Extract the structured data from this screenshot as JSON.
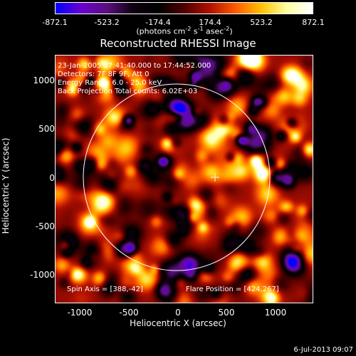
{
  "colorbar": {
    "ticks": [
      "-872.1",
      "-523.2",
      "-174.4",
      "174.4",
      "523.2",
      "872.1"
    ],
    "units_prefix": "(photons cm",
    "units_exp1": "-2",
    "units_mid": " s",
    "units_exp2": "-1",
    "units_mid2": " asec",
    "units_exp3": "-2",
    "units_suffix": ")",
    "colors": [
      "#0000ff",
      "#6a00d0",
      "#5a1080",
      "#100010",
      "#000000",
      "#500000",
      "#b01000",
      "#ff5a00",
      "#ffc000",
      "#ffffa0",
      "#ffffff"
    ]
  },
  "title": "Reconstructed RHESSI Image",
  "annotations": {
    "time": "23-Jan-2005 17:41:40.000 to 17:44:52.000",
    "detectors": "Detectors: 7F 8F 9F, Att 0",
    "energy": "Energy Range: 6.0 - 25.0 keV",
    "method": "Back Projection    Total counts: 6.02E+03",
    "spin_axis": "Spin Axis = [388,-42]",
    "flare_position": "Flare Position = [424,267]"
  },
  "axes": {
    "xlabel": "Heliocentric X (arcsec)",
    "ylabel": "Heliocentric Y (arcsec)",
    "xticks": [
      "-1000",
      "-500",
      "0",
      "500",
      "1000"
    ],
    "yticks": [
      "1000",
      "500",
      "0",
      "-500",
      "-1000"
    ]
  },
  "footer": "6-Jul-2013 09:07"
}
